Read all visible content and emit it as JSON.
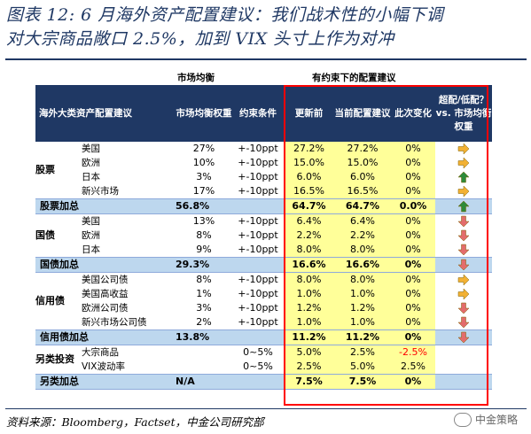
{
  "title": {
    "line1": "图表 12: 6 月海外资产配置建议：我们战术性的小幅下调",
    "line2": "对大宗商品敞口 2.5%，加到 VIX 头寸上作为对冲"
  },
  "group_headers": {
    "market": "市场均衡",
    "constrained": "有约束下的配置建议"
  },
  "header": {
    "asset": "海外大类资产配置建议",
    "market_weight": "市场均衡权重",
    "constraint": "约束条件",
    "updated": "更新前",
    "current": "当前配置建议",
    "change": "此次变化",
    "over_under": "超配/低配？ vs. 市场均衡权重"
  },
  "colors": {
    "header_bg": "#1f3864",
    "highlight": "#ffff99",
    "total_bg": "#bdd7ee",
    "frame": "#ff0000",
    "up": "#2e8b3a",
    "right": "#f2b134",
    "down": "#e36c6c"
  },
  "sections": [
    {
      "label": "股票",
      "rows": [
        {
          "name": "美国",
          "mw": "27%",
          "cons": "+-10ppt",
          "before": "27.2%",
          "current": "27.2%",
          "change": "0%",
          "arrow": "right-arrow-icon"
        },
        {
          "name": "欧洲",
          "mw": "10%",
          "cons": "+-10ppt",
          "before": "15.0%",
          "current": "15.0%",
          "change": "0%",
          "arrow": "right-arrow-icon"
        },
        {
          "name": "日本",
          "mw": "3%",
          "cons": "+-10ppt",
          "before": "6.0%",
          "current": "6.0%",
          "change": "0%",
          "arrow": "up-arrow-icon"
        },
        {
          "name": "新兴市场",
          "mw": "17%",
          "cons": "+-10ppt",
          "before": "16.5%",
          "current": "16.5%",
          "change": "0%",
          "arrow": "right-arrow-icon"
        }
      ],
      "total": {
        "name": "股票加总",
        "mw": "56.8%",
        "before": "64.7%",
        "current": "64.7%",
        "change": "0.0%",
        "arrow": "up-arrow-icon"
      }
    },
    {
      "label": "国债",
      "rows": [
        {
          "name": "美国",
          "mw": "13%",
          "cons": "+-10ppt",
          "before": "6.4%",
          "current": "6.4%",
          "change": "0%",
          "arrow": "down-arrow-icon"
        },
        {
          "name": "欧洲",
          "mw": "8%",
          "cons": "+-10ppt",
          "before": "2.2%",
          "current": "2.2%",
          "change": "0%",
          "arrow": "down-arrow-icon"
        },
        {
          "name": "日本",
          "mw": "9%",
          "cons": "+-10ppt",
          "before": "8.0%",
          "current": "8.0%",
          "change": "0%",
          "arrow": "down-arrow-icon"
        }
      ],
      "total": {
        "name": "国债加总",
        "mw": "29.3%",
        "before": "16.6%",
        "current": "16.6%",
        "change": "0%",
        "arrow": "down-arrow-icon"
      }
    },
    {
      "label": "信用债",
      "rows": [
        {
          "name": "美国公司债",
          "mw": "8%",
          "cons": "+-10ppt",
          "before": "8.0%",
          "current": "8.0%",
          "change": "0%",
          "arrow": "right-arrow-icon"
        },
        {
          "name": "美国高收益",
          "mw": "1%",
          "cons": "+-10ppt",
          "before": "1.0%",
          "current": "1.0%",
          "change": "0%",
          "arrow": "right-arrow-icon"
        },
        {
          "name": "欧洲公司债",
          "mw": "3%",
          "cons": "+-10ppt",
          "before": "1.2%",
          "current": "1.2%",
          "change": "0%",
          "arrow": "down-arrow-icon"
        },
        {
          "name": "新兴市场公司债",
          "mw": "2%",
          "cons": "+-10ppt",
          "before": "1.0%",
          "current": "1.0%",
          "change": "0%",
          "arrow": "down-arrow-icon"
        }
      ],
      "total": {
        "name": "信用债加总",
        "mw": "13.8%",
        "before": "11.2%",
        "current": "11.2%",
        "change": "0%",
        "arrow": "down-arrow-icon"
      }
    },
    {
      "label": "另类投资",
      "rows": [
        {
          "name": "大宗商品",
          "mw": "",
          "cons": "0~5%",
          "before": "5.0%",
          "current": "2.5%",
          "change": "-2.5%",
          "arrow": ""
        },
        {
          "name": "VIX波动率",
          "mw": "",
          "cons": "0~5%",
          "before": "2.5%",
          "current": "5.0%",
          "change": "2.5%",
          "arrow": ""
        }
      ],
      "total": {
        "name": "另类加总",
        "mw": "N/A",
        "before": "7.5%",
        "current": "7.5%",
        "change": "0%",
        "arrow": ""
      }
    }
  ],
  "source": "资料来源：Bloomberg，Factset，中金公司研究部",
  "watermark": "中金策略"
}
